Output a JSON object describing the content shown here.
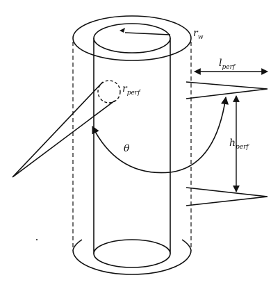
{
  "labels": {
    "rw": {
      "base": "r",
      "sub": "w"
    },
    "r_perf": {
      "base": "r",
      "sub": "perf"
    },
    "l_perf": {
      "base": "l",
      "sub": "perf"
    },
    "h_perf": {
      "base": "h",
      "sub": "perf"
    },
    "theta": "θ"
  },
  "colors": {
    "stroke": "#111111",
    "background": "#ffffff"
  }
}
